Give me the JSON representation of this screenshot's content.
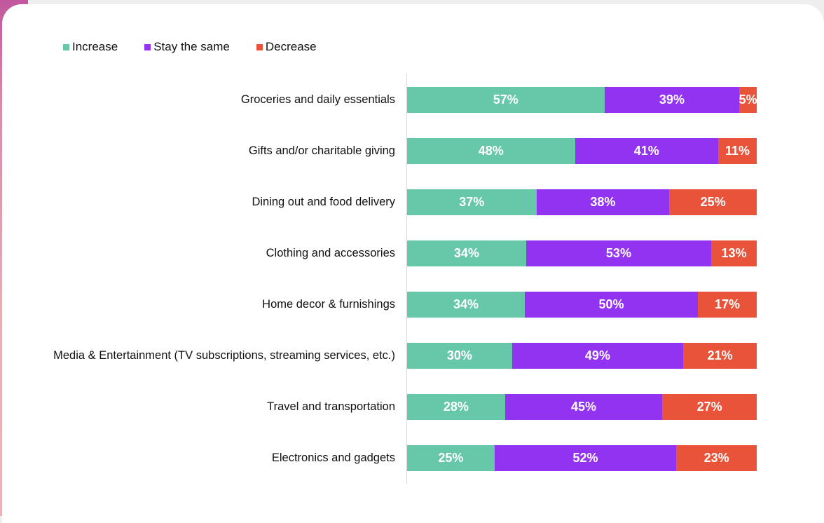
{
  "chart_data": {
    "type": "bar",
    "orientation": "horizontal",
    "stacked": true,
    "title": "",
    "xlabel": "",
    "ylabel": "",
    "xlim": [
      0,
      100
    ],
    "grid": false,
    "legend_position": "top-left",
    "categories": [
      "Groceries and daily essentials",
      "Gifts and/or charitable giving",
      "Dining out and food delivery",
      "Clothing and accessories",
      "Home decor & furnishings",
      "Media & Entertainment (TV subscriptions, streaming services, etc.)",
      "Travel and transportation",
      "Electronics and gadgets"
    ],
    "series": [
      {
        "name": "Increase",
        "color": "#66c7a9",
        "values": [
          57,
          48,
          37,
          34,
          34,
          30,
          28,
          25
        ]
      },
      {
        "name": "Stay the same",
        "color": "#9233f2",
        "values": [
          39,
          41,
          38,
          53,
          50,
          49,
          45,
          52
        ]
      },
      {
        "name": "Decrease",
        "color": "#e8533a",
        "values": [
          5,
          11,
          25,
          13,
          17,
          21,
          27,
          23
        ]
      }
    ],
    "value_suffix": "%"
  }
}
